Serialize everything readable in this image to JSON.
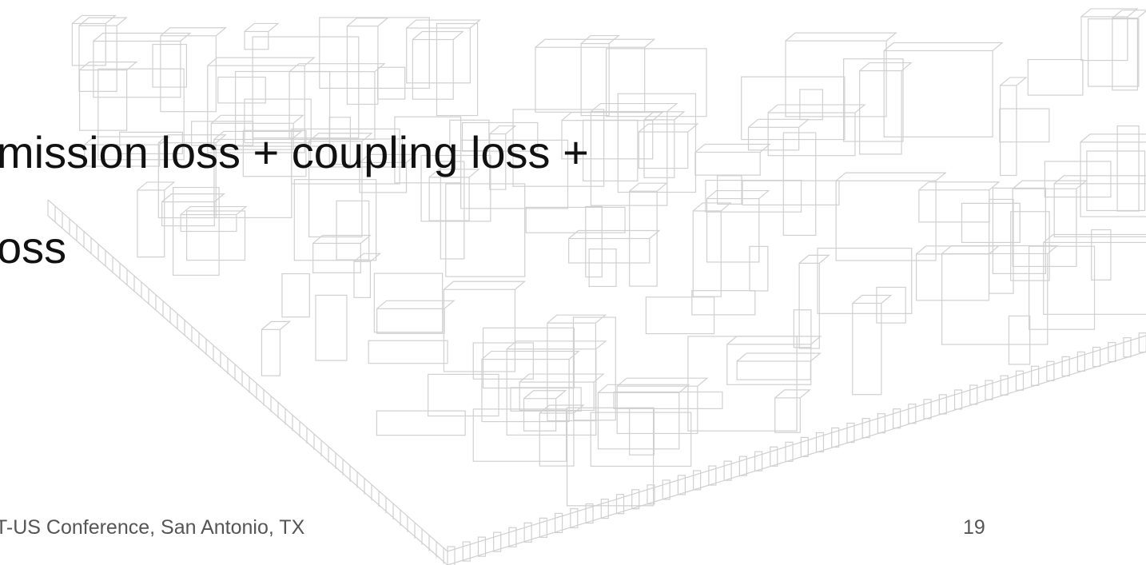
{
  "body": {
    "lines": [
      "mission loss + coupling loss +",
      "oss"
    ]
  },
  "footer": {
    "text": "T-US Conference, San Antonio, TX",
    "page_number": "19"
  }
}
